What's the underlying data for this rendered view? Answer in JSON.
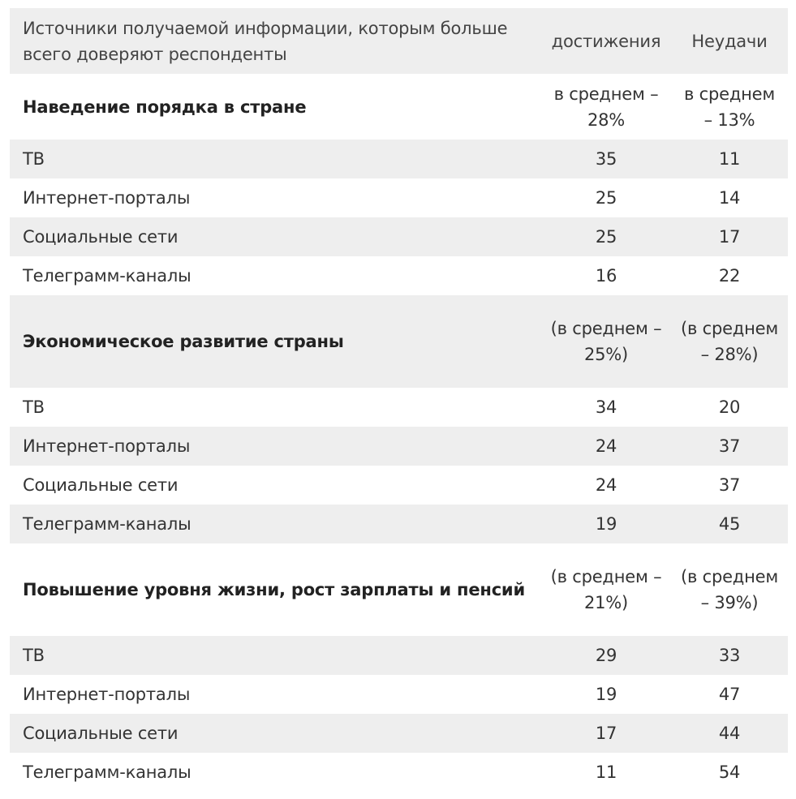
{
  "table": {
    "header": {
      "source": "Источники получаемой информации, которым больше всего доверяют респонденты",
      "achievements": "достижения",
      "failures": "Неудачи"
    },
    "sections": [
      {
        "title": "Наведение порядка в стране",
        "achievements_avg": "в среднем – 28%",
        "failures_avg": "в среднем – 13%",
        "rows": [
          {
            "source": "ТВ",
            "achievements": "35",
            "failures": "11"
          },
          {
            "source": "Интернет-порталы",
            "achievements": "25",
            "failures": "14"
          },
          {
            "source": "Социальные сети",
            "achievements": "25",
            "failures": "17"
          },
          {
            "source": "Телеграмм-каналы",
            "achievements": "16",
            "failures": "22"
          }
        ]
      },
      {
        "title": "Экономическое развитие страны",
        "achievements_avg": "(в среднем – 25%)",
        "failures_avg": "(в среднем – 28%)",
        "rows": [
          {
            "source": "ТВ",
            "achievements": "34",
            "failures": "20"
          },
          {
            "source": "Интернет-порталы",
            "achievements": "24",
            "failures": "37"
          },
          {
            "source": "Социальные сети",
            "achievements": "24",
            "failures": "37"
          },
          {
            "source": "Телеграмм-каналы",
            "achievements": "19",
            "failures": "45"
          }
        ]
      },
      {
        "title": "Повышение уровня жизни, рост зарплаты и пенсий",
        "achievements_avg": "(в среднем – 21%)",
        "failures_avg": "(в среднем – 39%)",
        "rows": [
          {
            "source": "ТВ",
            "achievements": "29",
            "failures": "33"
          },
          {
            "source": "Интернет-порталы",
            "achievements": "19",
            "failures": "47"
          },
          {
            "source": "Социальные сети",
            "achievements": "17",
            "failures": "44"
          },
          {
            "source": "Телеграмм-каналы",
            "achievements": "11",
            "failures": "54"
          }
        ]
      }
    ]
  }
}
